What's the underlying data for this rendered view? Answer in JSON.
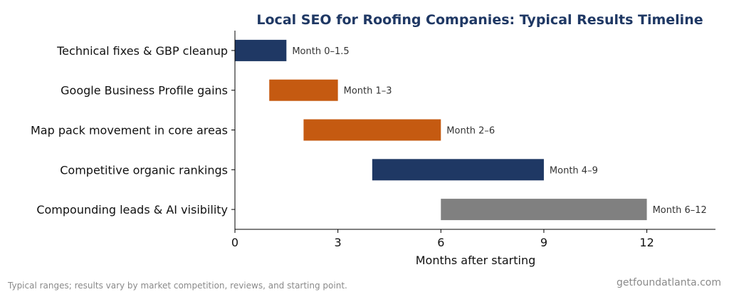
{
  "chart_data": {
    "type": "bar",
    "orientation": "horizontal-range",
    "title": "Local SEO for Roofing Companies: Typical Results Timeline",
    "xlabel": "Months after starting",
    "ylabel": "",
    "xlim": [
      0,
      14
    ],
    "xticks": [
      0,
      3,
      6,
      9,
      12
    ],
    "grid": false,
    "bars": [
      {
        "category": "Technical fixes & GBP cleanup",
        "start": 0,
        "end": 1.5,
        "label": "Month 0–1.5",
        "color": "#1f3864"
      },
      {
        "category": "Google Business Profile gains",
        "start": 1,
        "end": 3,
        "label": "Month 1–3",
        "color": "#c55a11"
      },
      {
        "category": "Map pack movement in core areas",
        "start": 2,
        "end": 6,
        "label": "Month 2–6",
        "color": "#c55a11"
      },
      {
        "category": "Competitive organic rankings",
        "start": 4,
        "end": 9,
        "label": "Month 4–9",
        "color": "#1f3864"
      },
      {
        "category": "Compounding leads & AI visibility",
        "start": 6,
        "end": 12,
        "label": "Month 6–12",
        "color": "#808080"
      }
    ]
  },
  "footer": {
    "note": "Typical ranges; results vary by market competition, reviews, and starting point.",
    "brand": "getfoundatlanta.com"
  }
}
